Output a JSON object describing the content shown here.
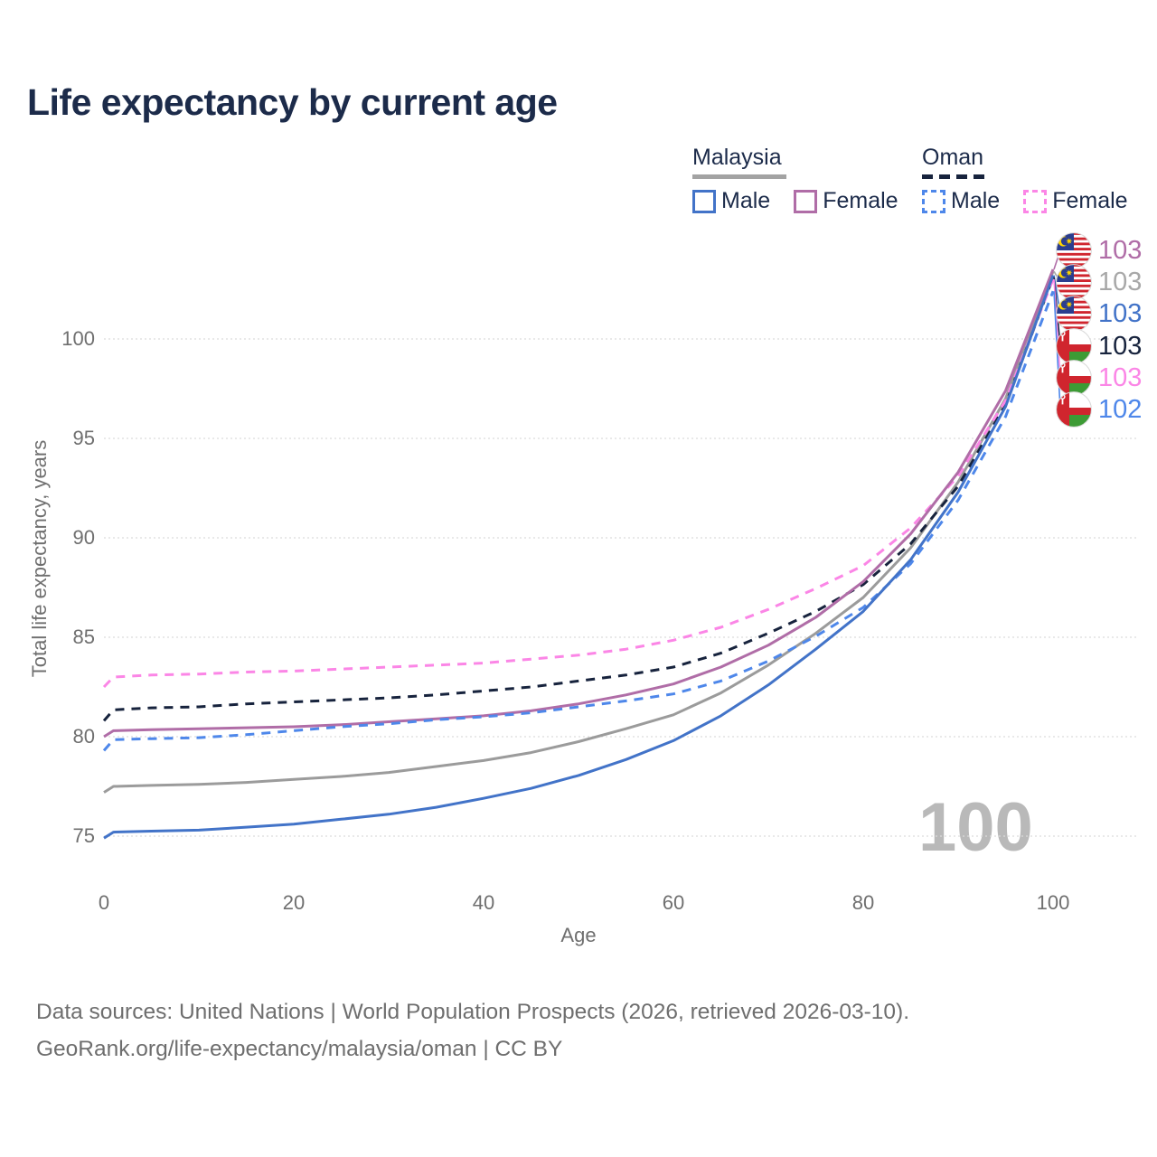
{
  "title": "Life expectancy by current age",
  "watermark_age": "100",
  "legend": {
    "groups": [
      {
        "id": "malaysia",
        "label": "Malaysia",
        "underline_style": "solid",
        "underline_color": "#a3a3a3",
        "underline_width": 104,
        "items": [
          {
            "label": "Male",
            "color": "#4273c8",
            "dash": false
          },
          {
            "label": "Female",
            "color": "#b06da7",
            "dash": false
          }
        ]
      },
      {
        "id": "oman",
        "label": "Oman",
        "underline_style": "dashed",
        "underline_color": "#17233d",
        "underline_width": 72,
        "items": [
          {
            "label": "Male",
            "color": "#4e87ea",
            "dash": true
          },
          {
            "label": "Female",
            "color": "#fb86e6",
            "dash": true
          }
        ]
      }
    ]
  },
  "chart_data": {
    "type": "line",
    "title": "Life expectancy by current age",
    "xlabel": "Age",
    "ylabel": "Total life expectancy, years",
    "xticks": [
      0,
      20,
      40,
      60,
      80,
      100
    ],
    "yticks": [
      75,
      80,
      85,
      90,
      95,
      100
    ],
    "xlim": [
      0,
      100
    ],
    "ylim": [
      73.5,
      104.5
    ],
    "grid": "horizontal-dotted",
    "legend_position": "top-right",
    "x": [
      0,
      1,
      5,
      10,
      15,
      20,
      25,
      30,
      35,
      40,
      45,
      50,
      55,
      60,
      65,
      70,
      75,
      80,
      85,
      90,
      95,
      100
    ],
    "series": [
      {
        "name": "Malaysia Total",
        "country": "Malaysia",
        "sex": "Total",
        "color": "#9b9b9b",
        "dash": false,
        "values": [
          77.2,
          77.5,
          77.55,
          77.6,
          77.7,
          77.85,
          78.0,
          78.2,
          78.5,
          78.8,
          79.2,
          79.75,
          80.4,
          81.1,
          82.2,
          83.6,
          85.2,
          87.0,
          89.5,
          92.8,
          97.0,
          103.4
        ]
      },
      {
        "name": "Oman Total",
        "country": "Oman",
        "sex": "Total",
        "color": "#17233d",
        "dash": true,
        "values": [
          80.8,
          81.35,
          81.45,
          81.5,
          81.65,
          81.75,
          81.85,
          81.95,
          82.1,
          82.3,
          82.5,
          82.8,
          83.1,
          83.5,
          84.2,
          85.2,
          86.3,
          87.65,
          89.7,
          92.6,
          96.7,
          103.1
        ]
      },
      {
        "name": "Oman Female",
        "country": "Oman",
        "sex": "Female",
        "color": "#fb86e6",
        "dash": true,
        "values": [
          82.5,
          83.0,
          83.1,
          83.15,
          83.25,
          83.3,
          83.4,
          83.5,
          83.6,
          83.7,
          83.9,
          84.1,
          84.4,
          84.85,
          85.5,
          86.4,
          87.45,
          88.6,
          90.5,
          93.1,
          96.9,
          103.0
        ]
      },
      {
        "name": "Malaysia Female",
        "country": "Malaysia",
        "sex": "Female",
        "color": "#b06da7",
        "dash": false,
        "values": [
          80.0,
          80.3,
          80.35,
          80.4,
          80.45,
          80.5,
          80.6,
          80.75,
          80.9,
          81.05,
          81.3,
          81.65,
          82.1,
          82.65,
          83.5,
          84.6,
          86.0,
          87.8,
          90.2,
          93.3,
          97.4,
          103.5
        ]
      },
      {
        "name": "Oman Male",
        "country": "Oman",
        "sex": "Male",
        "color": "#4e87ea",
        "dash": true,
        "values": [
          79.3,
          79.85,
          79.9,
          79.95,
          80.1,
          80.3,
          80.5,
          80.65,
          80.85,
          81.0,
          81.2,
          81.5,
          81.8,
          82.15,
          82.8,
          83.8,
          85.05,
          86.5,
          88.7,
          91.9,
          96.1,
          102.4
        ]
      },
      {
        "name": "Malaysia Male",
        "country": "Malaysia",
        "sex": "Male",
        "color": "#4273c8",
        "dash": false,
        "values": [
          74.9,
          75.2,
          75.25,
          75.3,
          75.45,
          75.6,
          75.85,
          76.1,
          76.45,
          76.9,
          77.4,
          78.05,
          78.85,
          79.8,
          81.05,
          82.6,
          84.4,
          86.3,
          88.9,
          92.3,
          96.6,
          103.2
        ]
      }
    ]
  },
  "end_labels": [
    {
      "series": "Malaysia Female",
      "flag": "malaysia",
      "value": "103",
      "color": "#b06da7"
    },
    {
      "series": "Malaysia Total",
      "flag": "malaysia",
      "value": "103",
      "color": "#a8a8a8"
    },
    {
      "series": "Malaysia Male",
      "flag": "malaysia",
      "value": "103",
      "color": "#4273c8"
    },
    {
      "series": "Oman Total",
      "flag": "oman",
      "value": "103",
      "color": "#17233d"
    },
    {
      "series": "Oman Female",
      "flag": "oman",
      "value": "103",
      "color": "#fb86e6"
    },
    {
      "series": "Oman Male",
      "flag": "oman",
      "value": "102",
      "color": "#4e87ea"
    }
  ],
  "footer": {
    "line1": "Data sources: United Nations | World Population Prospects (2026, retrieved 2026-03-10).",
    "line2": "GeoRank.org/life-expectancy/malaysia/oman | CC BY"
  }
}
